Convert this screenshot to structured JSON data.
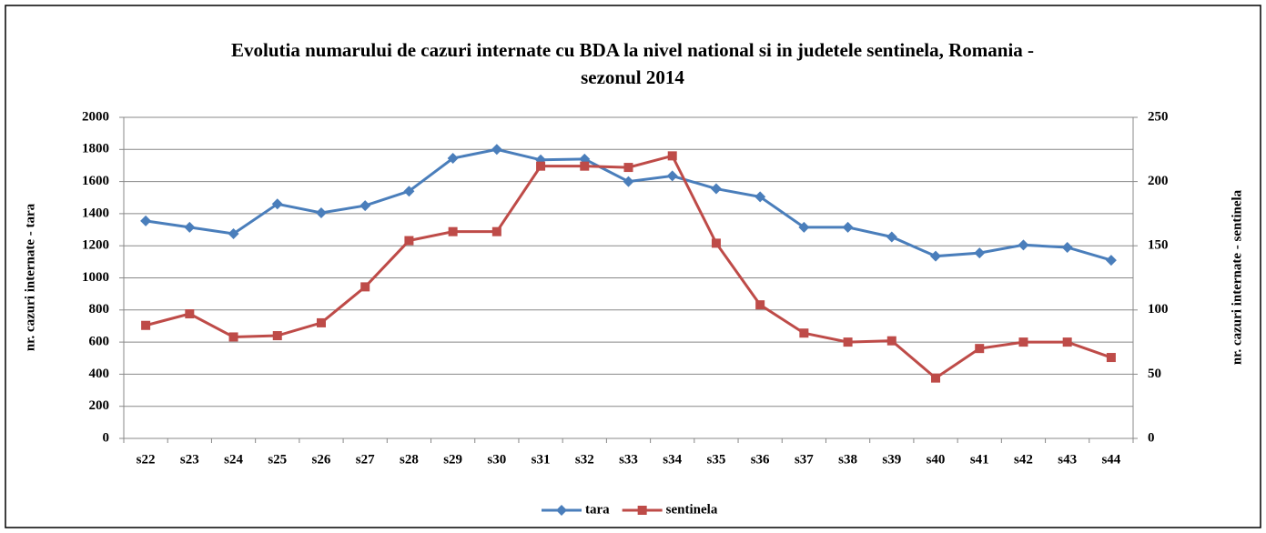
{
  "chart_data": {
    "type": "line",
    "title": "Evolutia numarului de cazuri internate cu BDA la nivel national si in judetele sentinela, Romania - sezonul 2014",
    "y_label": "nr. cazuri internate - tara",
    "y2_label": "nr. cazuri internate - sentinela",
    "categories": [
      "s22",
      "s23",
      "s24",
      "s25",
      "s26",
      "s27",
      "s28",
      "s29",
      "s30",
      "s31",
      "s32",
      "s33",
      "s34",
      "s35",
      "s36",
      "s37",
      "s38",
      "s39",
      "s40",
      "s41",
      "s42",
      "s43",
      "s44"
    ],
    "series": [
      {
        "name": "tara",
        "color": "#4a7ebb",
        "marker": "diamond",
        "values": [
          1355,
          1315,
          1275,
          1460,
          1405,
          1450,
          1540,
          1745,
          1800,
          1735,
          1740,
          1600,
          1635,
          1555,
          1505,
          1315,
          1315,
          1255,
          1135,
          1155,
          1205,
          1190,
          1110
        ]
      },
      {
        "name": "sentinela",
        "color": "#be4b48",
        "marker": "square",
        "axis": "y2",
        "values": [
          88,
          97,
          79,
          80,
          90,
          118,
          154,
          161,
          161,
          212,
          212,
          211,
          220,
          152,
          104,
          82,
          75,
          76,
          47,
          70,
          75,
          75,
          63
        ]
      }
    ],
    "ylim": [
      0,
      2000
    ],
    "yticks": [
      0,
      200,
      400,
      600,
      800,
      1000,
      1200,
      1400,
      1600,
      1800,
      2000
    ],
    "y2lim": [
      0,
      250
    ],
    "y2ticks": [
      0,
      50,
      100,
      150,
      200,
      250
    ],
    "grid": true,
    "legend": "bottom"
  }
}
